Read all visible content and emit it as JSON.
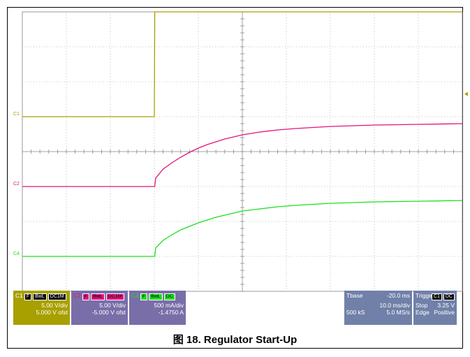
{
  "chart_data": {
    "type": "line",
    "title": "",
    "xlabel": "",
    "ylabel": "",
    "x_unit": "ms",
    "xlim": [
      -50,
      50
    ],
    "x_div": 10,
    "grid": true,
    "y_divs": 8,
    "series": [
      {
        "name": "C1",
        "color": "#a8a000",
        "volts_per_div": 5,
        "offset_v": 5,
        "points": [
          [
            -50,
            0
          ],
          [
            -20,
            0
          ],
          [
            -19.9,
            15
          ],
          [
            50,
            15
          ]
        ]
      },
      {
        "name": "C2",
        "color": "#e0157a",
        "volts_per_div": 5,
        "offset_v": -5,
        "points": [
          [
            -50,
            0
          ],
          [
            -19.9,
            0
          ],
          [
            -19.7,
            1.2
          ],
          [
            -18,
            2.5
          ],
          [
            -16,
            3.4
          ],
          [
            -14,
            4.2
          ],
          [
            -12,
            4.9
          ],
          [
            -10,
            5.5
          ],
          [
            -8,
            6.0
          ],
          [
            -6,
            6.4
          ],
          [
            -4,
            6.8
          ],
          [
            -2,
            7.1
          ],
          [
            0,
            7.4
          ],
          [
            4,
            7.8
          ],
          [
            8,
            8.1
          ],
          [
            12,
            8.3
          ],
          [
            20,
            8.6
          ],
          [
            30,
            8.8
          ],
          [
            40,
            8.9
          ],
          [
            50,
            9.0
          ]
        ]
      },
      {
        "name": "C4",
        "color": "#1ee01e",
        "amps_per_div": 0.5,
        "offset_a": -1.475,
        "points": [
          [
            -50,
            0
          ],
          [
            -19.9,
            0
          ],
          [
            -19.7,
            0.12
          ],
          [
            -18,
            0.23
          ],
          [
            -16,
            0.31
          ],
          [
            -14,
            0.38
          ],
          [
            -12,
            0.43
          ],
          [
            -10,
            0.48
          ],
          [
            -8,
            0.52
          ],
          [
            -6,
            0.56
          ],
          [
            -4,
            0.59
          ],
          [
            -2,
            0.62
          ],
          [
            0,
            0.65
          ],
          [
            4,
            0.68
          ],
          [
            8,
            0.71
          ],
          [
            12,
            0.73
          ],
          [
            20,
            0.76
          ],
          [
            30,
            0.78
          ],
          [
            40,
            0.79
          ],
          [
            50,
            0.8
          ]
        ]
      }
    ],
    "channel_labels": [
      "C1",
      "C2",
      "C4"
    ],
    "trigger_level_v": 3.25
  },
  "panel": {
    "c1": {
      "name": "C1",
      "tags": [
        "F",
        "BwL",
        "DC1M"
      ],
      "scale": "5.00 V/div",
      "offset": "5.000 V ofst",
      "color": "#a8a000"
    },
    "c2": {
      "name": "C2",
      "tags": [
        "F",
        "BwL",
        "DC1M"
      ],
      "scale": "5.00 V/div",
      "offset": "-5.000 V ofst",
      "color": "#e0157a"
    },
    "c4": {
      "name": "C4",
      "tags": [
        "F",
        "BwL",
        "DC"
      ],
      "scale": "500 mA/div",
      "offset": "-1.4750 A",
      "color": "#1ee01e"
    },
    "timebase": {
      "label": "Tbase",
      "delay": "-20.0 ms",
      "per_div": "10.0 ms/div",
      "samples": "500 kS",
      "rate": "5.0 MS/s",
      "color": "#7080a8"
    },
    "trigger": {
      "label": "Trigger",
      "tags": [
        "C1",
        "DC"
      ],
      "mode": "Stop",
      "level": "3.25 V",
      "type": "Edge",
      "slope": "Positive",
      "color": "#7080a8"
    }
  },
  "caption": "图 18. Regulator Start-Up"
}
